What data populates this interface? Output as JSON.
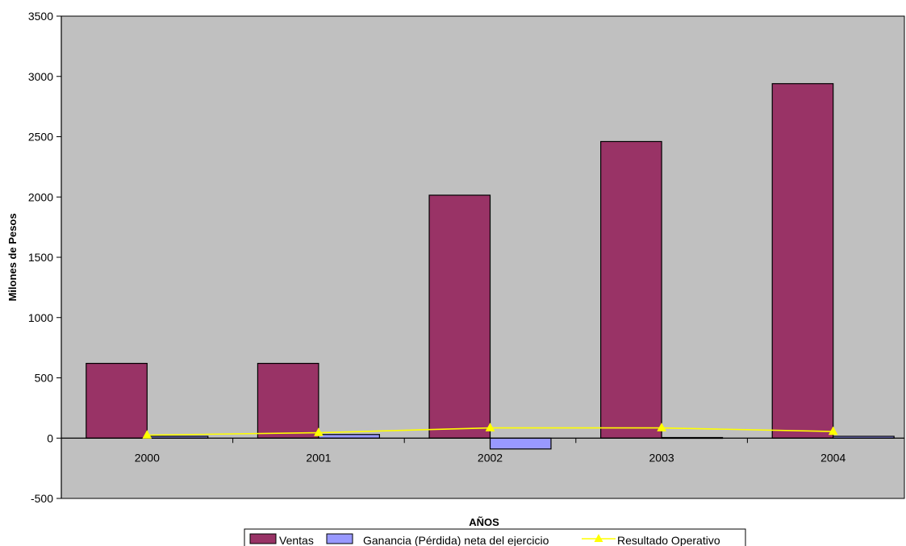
{
  "colors": {
    "plot_background": "#c0c0c0",
    "ventas": "#993366",
    "ganancia": "#9999ff",
    "resultado": "#ffff00",
    "axis": "#000000"
  },
  "chart_data": {
    "type": "bar",
    "title": "",
    "xlabel": "AÑOS",
    "ylabel": "Milones de Pesos",
    "categories": [
      "2000",
      "2001",
      "2002",
      "2003",
      "2004"
    ],
    "ylim": [
      -500,
      3500
    ],
    "yticks": [
      -500,
      0,
      500,
      1000,
      1500,
      2000,
      2500,
      3000,
      3500
    ],
    "grid": false,
    "legend": "bottom",
    "series": [
      {
        "name": "Ventas",
        "kind": "bar",
        "values": [
          620,
          620,
          2015,
          2460,
          2940
        ]
      },
      {
        "name": "Ganancia (Pérdida) neta del ejercicio",
        "kind": "bar",
        "values": [
          15,
          30,
          -90,
          5,
          15
        ]
      },
      {
        "name": "Resultado Operativo",
        "kind": "line",
        "values": [
          25,
          45,
          85,
          85,
          55
        ]
      }
    ]
  }
}
